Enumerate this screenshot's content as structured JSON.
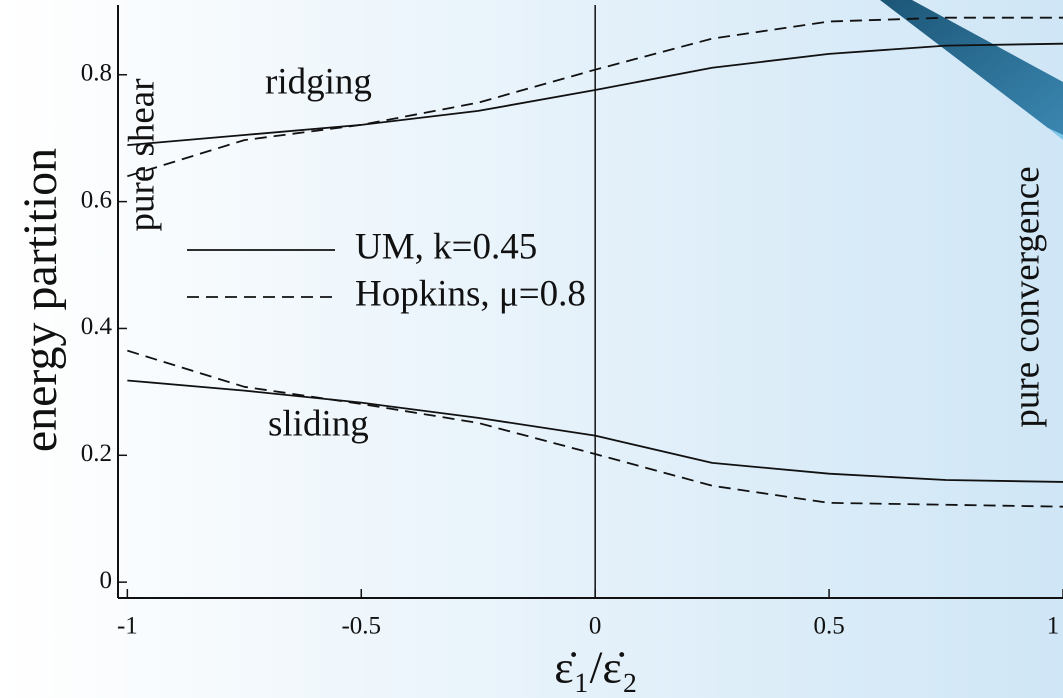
{
  "chart_data": {
    "type": "line",
    "x_label": "ε̇₁/ε̇₂",
    "y_label": "energy partition",
    "annotations": [
      "ridging",
      "sliding",
      "pure shear",
      "pure convergence"
    ],
    "x": [
      -1,
      -0.75,
      -0.5,
      -0.25,
      0,
      0.25,
      0.5,
      0.75,
      1
    ],
    "series": [
      {
        "name": "UM, k=0.45",
        "color": "#111111",
        "dash": false,
        "values": [
          0.689,
          0.705,
          0.721,
          0.743,
          0.776,
          0.811,
          0.833,
          0.846,
          0.849
        ],
        "values_lower": [
          0.318,
          0.302,
          0.283,
          0.259,
          0.231,
          0.188,
          0.171,
          0.161,
          0.158
        ]
      },
      {
        "name": "Hopkins, μ=0.8",
        "color": "#111111",
        "dash": true,
        "values": [
          0.64,
          0.697,
          0.721,
          0.756,
          0.808,
          0.857,
          0.884,
          0.89,
          0.89
        ],
        "values_lower": [
          0.365,
          0.308,
          0.281,
          0.251,
          0.202,
          0.152,
          0.125,
          0.122,
          0.119
        ]
      }
    ],
    "xlim": [
      -1.02,
      1.0
    ],
    "ylim": [
      -0.025,
      0.91
    ],
    "xticks": [
      -1,
      -0.5,
      0,
      0.5,
      1
    ],
    "yticks": [
      0,
      0.2,
      0.4,
      0.6,
      0.8
    ],
    "vline": 0
  }
}
